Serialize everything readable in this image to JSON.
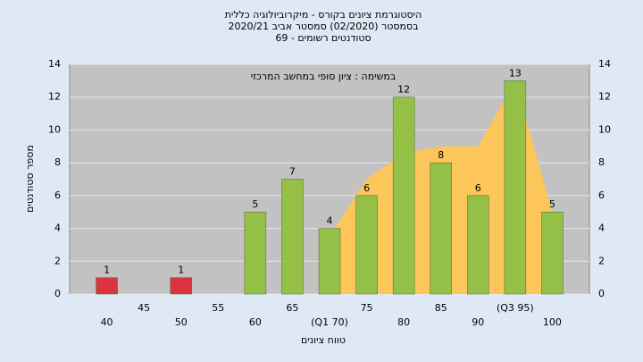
{
  "chart_data": {
    "type": "bar",
    "title": [
      "היסטוגרמת ציונים בקורס - מיקרוביולוגיה כללית",
      "בסמסטר  (02/2020)  סמסטר אביב 2020/21",
      "סטודנטים רשומים - 69"
    ],
    "annotation": "במשימה : ציון סופי במחשב המרכזי",
    "x_label": "טווח ציונים",
    "y_label": "מספר סטודנטים",
    "categories": [
      "40",
      "45",
      "50",
      "55",
      "60",
      "65",
      "(Q1 70)",
      "75",
      "80",
      "85",
      "90",
      "(Q3 95)",
      "100"
    ],
    "values": [
      1,
      null,
      1,
      null,
      5,
      7,
      4,
      6,
      12,
      8,
      6,
      13,
      5
    ],
    "colors": [
      "#d9343f",
      null,
      "#d9343f",
      null,
      "#94c047",
      "#94c047",
      "#94c047",
      "#94c047",
      "#94c047",
      "#94c047",
      "#94c047",
      "#94c047",
      "#94c047"
    ],
    "area": {
      "color": "#fcc65a",
      "values": [
        null,
        null,
        null,
        null,
        null,
        null,
        3.5,
        7,
        8.6,
        9,
        9,
        13,
        5
      ]
    },
    "ylim": [
      0,
      14
    ],
    "yticks": [
      0,
      2,
      4,
      6,
      8,
      10,
      12,
      14
    ],
    "grid": true
  }
}
